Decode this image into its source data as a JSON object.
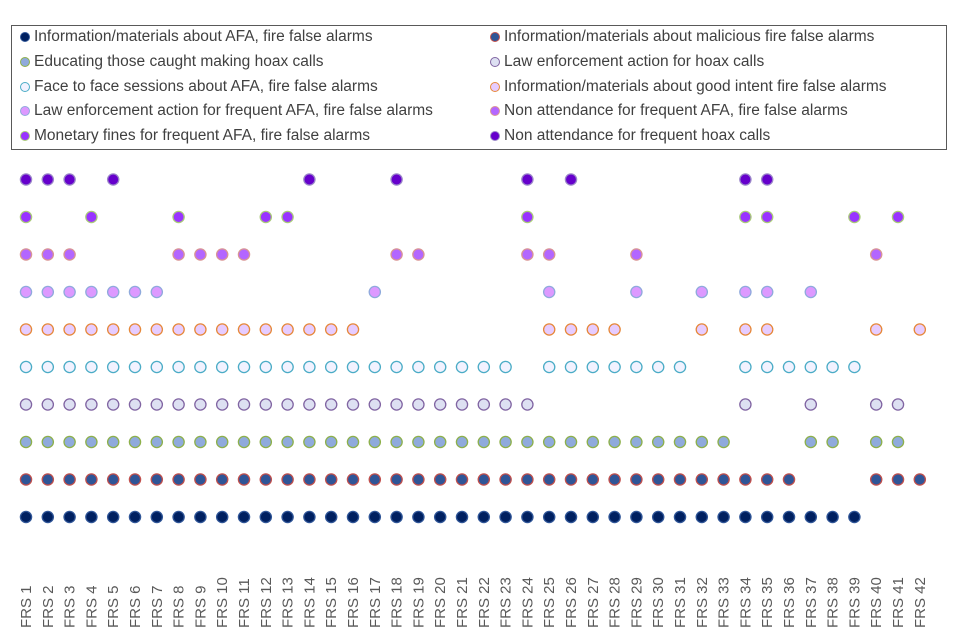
{
  "chart_data": {
    "type": "scatter",
    "title": "",
    "xlabel": "",
    "ylabel": "",
    "legend_position": "top",
    "grid": false,
    "categories": [
      "FRS 1",
      "FRS 2",
      "FRS 3",
      "FRS 4",
      "FRS 5",
      "FRS 6",
      "FRS 7",
      "FRS 8",
      "FRS 9",
      "FRS 10",
      "FRS 11",
      "FRS 12",
      "FRS 13",
      "FRS 14",
      "FRS 15",
      "FRS 16",
      "FRS 17",
      "FRS 18",
      "FRS 19",
      "FRS 20",
      "FRS 21",
      "FRS 22",
      "FRS 23",
      "FRS 24",
      "FRS 25",
      "FRS 26",
      "FRS 27",
      "FRS 28",
      "FRS 29",
      "FRS 30",
      "FRS 31",
      "FRS 32",
      "FRS 33",
      "FRS 34",
      "FRS 35",
      "FRS 36",
      "FRS 37",
      "FRS 38",
      "FRS 39",
      "FRS 40",
      "FRS 41",
      "FRS 42"
    ],
    "series": [
      {
        "name": "Information/materials about AFA, fire false alarms",
        "fill": "#002060",
        "stroke": "#2f5597",
        "frs": [
          1,
          2,
          3,
          4,
          5,
          6,
          7,
          8,
          9,
          10,
          11,
          12,
          13,
          14,
          15,
          16,
          17,
          18,
          19,
          20,
          21,
          22,
          23,
          24,
          25,
          26,
          27,
          28,
          29,
          30,
          31,
          32,
          33,
          34,
          35,
          36,
          37,
          38,
          39
        ]
      },
      {
        "name": "Information/materials about malicious fire false alarms",
        "fill": "#2f5597",
        "stroke": "#c0504d",
        "frs": [
          1,
          2,
          3,
          4,
          5,
          6,
          7,
          8,
          9,
          10,
          11,
          12,
          13,
          14,
          15,
          16,
          17,
          18,
          19,
          20,
          21,
          22,
          23,
          24,
          25,
          26,
          27,
          28,
          29,
          30,
          31,
          32,
          33,
          34,
          35,
          36,
          40,
          41,
          42
        ]
      },
      {
        "name": "Educating those caught making hoax calls",
        "fill": "#8faadc",
        "stroke": "#8db04a",
        "frs": [
          1,
          2,
          3,
          4,
          5,
          6,
          7,
          8,
          9,
          10,
          11,
          12,
          13,
          14,
          15,
          16,
          17,
          18,
          19,
          20,
          21,
          22,
          23,
          24,
          25,
          26,
          27,
          28,
          29,
          30,
          31,
          32,
          33,
          37,
          38,
          40,
          41
        ]
      },
      {
        "name": "Law enforcement action for hoax calls",
        "fill": "#dde0f2",
        "stroke": "#8064a2",
        "frs": [
          1,
          2,
          3,
          4,
          5,
          6,
          7,
          8,
          9,
          10,
          11,
          12,
          13,
          14,
          15,
          16,
          17,
          18,
          19,
          20,
          21,
          22,
          23,
          24,
          34,
          37,
          40,
          41
        ]
      },
      {
        "name": "Face to face sessions about AFA, fire false alarms",
        "fill": "#f2f2ff",
        "stroke": "#4bacc6",
        "frs": [
          1,
          2,
          3,
          4,
          5,
          6,
          7,
          8,
          9,
          10,
          11,
          12,
          13,
          14,
          15,
          16,
          17,
          18,
          19,
          20,
          21,
          22,
          23,
          25,
          26,
          27,
          28,
          29,
          30,
          31,
          34,
          35,
          36,
          37,
          38,
          39
        ]
      },
      {
        "name": "Information/materials about good intent fire false alarms",
        "fill": "#e6ccff",
        "stroke": "#e6883a",
        "frs": [
          1,
          2,
          3,
          4,
          5,
          6,
          7,
          8,
          9,
          10,
          11,
          12,
          13,
          14,
          15,
          16,
          25,
          26,
          27,
          28,
          32,
          34,
          35,
          40,
          42
        ]
      },
      {
        "name": "Law enforcement action for frequent AFA, fire false alarms",
        "fill": "#dd99ff",
        "stroke": "#8faadc",
        "frs": [
          1,
          2,
          3,
          4,
          5,
          6,
          7,
          17,
          25,
          29,
          32,
          34,
          35,
          37
        ]
      },
      {
        "name": "Non attendance for frequent AFA, fire false alarms",
        "fill": "#b366ff",
        "stroke": "#d99594",
        "frs": [
          1,
          2,
          3,
          8,
          9,
          10,
          11,
          18,
          19,
          24,
          25,
          29,
          40
        ]
      },
      {
        "name": "Monetary fines for frequent AFA, fire false alarms",
        "fill": "#9933ff",
        "stroke": "#a9c97a",
        "frs": [
          1,
          4,
          8,
          12,
          13,
          24,
          34,
          35,
          39,
          41
        ]
      },
      {
        "name": "Non attendance for frequent hoax calls",
        "fill": "#6600cc",
        "stroke": "#9b87c9",
        "frs": [
          1,
          2,
          3,
          5,
          14,
          18,
          24,
          26,
          34,
          35
        ]
      }
    ]
  }
}
